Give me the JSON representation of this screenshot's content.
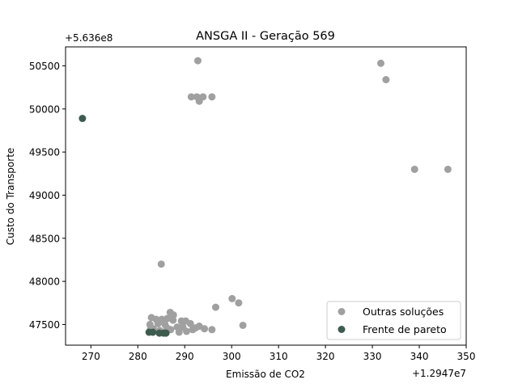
{
  "chart_data": {
    "type": "scatter",
    "title": "ANSGA II - Geração 569",
    "xlabel": "Emissão de CO2",
    "ylabel": "Custo do Transporte",
    "x_offset_text": "+1.2947e7",
    "y_offset_text": "+5.636e8",
    "xlim": [
      264.6,
      350
    ],
    "ylim": [
      47260,
      50720
    ],
    "x_ticks": [
      270,
      280,
      290,
      300,
      310,
      320,
      330,
      340,
      350
    ],
    "y_ticks": [
      47500,
      48000,
      48500,
      49000,
      49500,
      50000,
      50500
    ],
    "grid": false,
    "legend_position": "lower right",
    "series": [
      {
        "name": "Outras soluções",
        "color": "#a0a0a0",
        "points": [
          [
            292.8,
            50560
          ],
          [
            331.8,
            50530
          ],
          [
            332.9,
            50340
          ],
          [
            291.4,
            50140
          ],
          [
            292.6,
            50140
          ],
          [
            293.9,
            50140
          ],
          [
            295.8,
            50140
          ],
          [
            293.1,
            50090
          ],
          [
            339.0,
            49300
          ],
          [
            346.1,
            49300
          ],
          [
            285.0,
            48200
          ],
          [
            300.1,
            47800
          ],
          [
            301.5,
            47750
          ],
          [
            296.6,
            47700
          ],
          [
            286.9,
            47640
          ],
          [
            287.6,
            47610
          ],
          [
            282.9,
            47580
          ],
          [
            283.9,
            47560
          ],
          [
            285.1,
            47560
          ],
          [
            286.3,
            47570
          ],
          [
            289.3,
            47540
          ],
          [
            290.2,
            47540
          ],
          [
            291.2,
            47510
          ],
          [
            287.5,
            47550
          ],
          [
            282.6,
            47500
          ],
          [
            284.3,
            47510
          ],
          [
            285.8,
            47500
          ],
          [
            288.4,
            47470
          ],
          [
            289.6,
            47470
          ],
          [
            292.3,
            47460
          ],
          [
            293.1,
            47480
          ],
          [
            294.2,
            47450
          ],
          [
            295.8,
            47440
          ],
          [
            302.4,
            47490
          ],
          [
            282.7,
            47440
          ],
          [
            284.7,
            47430
          ],
          [
            287.0,
            47440
          ],
          [
            288.8,
            47410
          ],
          [
            290.4,
            47420
          ],
          [
            291.7,
            47440
          ],
          [
            283.3,
            47450
          ],
          [
            286.2,
            47460
          ]
        ]
      },
      {
        "name": "Frente de pareto",
        "color": "#3d5c4f",
        "points": [
          [
            268.2,
            49890
          ],
          [
            282.4,
            47410
          ],
          [
            283.2,
            47410
          ],
          [
            284.6,
            47400
          ],
          [
            285.5,
            47400
          ],
          [
            286.0,
            47400
          ]
        ]
      }
    ]
  }
}
